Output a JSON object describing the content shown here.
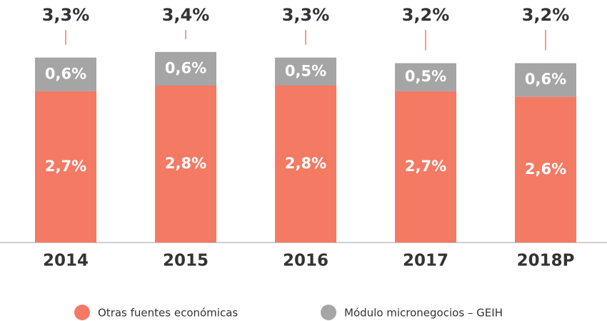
{
  "chart_data": {
    "type": "stacked_bar",
    "categories": [
      "2014",
      "2015",
      "2016",
      "2017",
      "2018P"
    ],
    "series": [
      {
        "name": "Otras fuentes económicas",
        "color": "#f47a64",
        "values": [
          2.7,
          2.8,
          2.8,
          2.7,
          2.6
        ],
        "value_labels": [
          "2,7%",
          "2,8%",
          "2,8%",
          "2,7%",
          "2,6%"
        ]
      },
      {
        "name": "Módulo micronegocios – GEIH",
        "color": "#a5a5a5",
        "values": [
          0.6,
          0.6,
          0.5,
          0.5,
          0.6
        ],
        "value_labels": [
          "0,6%",
          "0,6%",
          "0,5%",
          "0,5%",
          "0,6%"
        ]
      }
    ],
    "totals": [
      3.3,
      3.4,
      3.3,
      3.2,
      3.2
    ],
    "total_labels": [
      "3,3%",
      "3,4%",
      "3,3%",
      "3,2%",
      "3,2%"
    ],
    "ylim": [
      0,
      4.2
    ],
    "legend": "bottom"
  }
}
